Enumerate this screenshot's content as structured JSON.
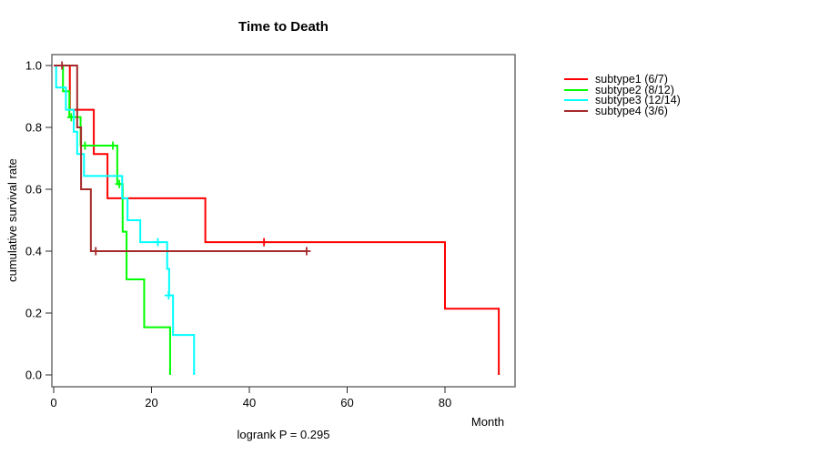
{
  "chart_data": {
    "type": "line",
    "chart_kind": "kaplan-meier-step",
    "title": "Time to Death",
    "xlabel": "Month",
    "ylabel": "cumulative survival rate",
    "annotation": "logrank P = 0.295",
    "xlim": [
      0,
      94
    ],
    "ylim": [
      0.0,
      1.0
    ],
    "x_ticks": [
      0,
      20,
      40,
      60,
      80
    ],
    "y_ticks": [
      "0.0",
      "0.2",
      "0.4",
      "0.6",
      "0.8",
      "1.0"
    ],
    "grid": false,
    "legend_position": "right-outside",
    "series": [
      {
        "name": "subtype1 (6/7)",
        "color": "#ff0000",
        "steps": [
          [
            0,
            1.0
          ],
          [
            3.3,
            0.857
          ],
          [
            8.2,
            0.714
          ],
          [
            11.0,
            0.571
          ],
          [
            31.0,
            0.429
          ],
          [
            80.0,
            0.214
          ],
          [
            91.0,
            0.0
          ]
        ],
        "censor_marks": [
          [
            43.0,
            0.429
          ]
        ]
      },
      {
        "name": "subtype2 (8/12)",
        "color": "#00ff00",
        "steps": [
          [
            0,
            1.0
          ],
          [
            1.9,
            0.917
          ],
          [
            3.2,
            0.833
          ],
          [
            5.5,
            0.741
          ],
          [
            13.0,
            0.617
          ],
          [
            14.1,
            0.463
          ],
          [
            14.9,
            0.309
          ],
          [
            18.5,
            0.154
          ],
          [
            23.8,
            0.0
          ]
        ],
        "censor_marks": [
          [
            3.6,
            0.833
          ],
          [
            6.4,
            0.741
          ],
          [
            12.1,
            0.741
          ],
          [
            13.4,
            0.617
          ]
        ]
      },
      {
        "name": "subtype3 (12/14)",
        "color": "#00ffff",
        "steps": [
          [
            0,
            1.0
          ],
          [
            0.5,
            0.929
          ],
          [
            2.5,
            0.857
          ],
          [
            4.1,
            0.786
          ],
          [
            4.8,
            0.714
          ],
          [
            6.2,
            0.643
          ],
          [
            14.0,
            0.571
          ],
          [
            15.1,
            0.5
          ],
          [
            17.7,
            0.429
          ],
          [
            23.2,
            0.343
          ],
          [
            23.6,
            0.257
          ],
          [
            24.4,
            0.129
          ],
          [
            28.7,
            0.0
          ]
        ],
        "censor_marks": [
          [
            21.3,
            0.429
          ],
          [
            23.5,
            0.257
          ]
        ]
      },
      {
        "name": "subtype4 (3/6)",
        "color": "#a52a2a",
        "steps": [
          [
            0,
            1.0
          ],
          [
            4.8,
            0.8
          ],
          [
            5.6,
            0.6
          ],
          [
            7.6,
            0.4
          ]
        ],
        "end_time": 51.7,
        "censor_marks": [
          [
            1.7,
            1.0
          ],
          [
            8.6,
            0.4
          ],
          [
            51.7,
            0.4
          ]
        ]
      }
    ]
  }
}
